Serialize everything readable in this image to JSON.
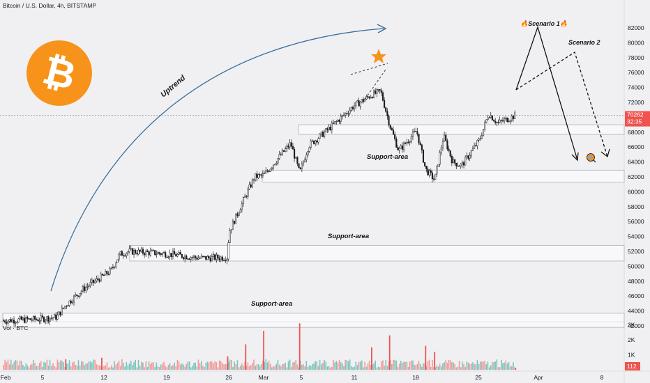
{
  "header": {
    "title": "Bitcoin / U.S. Dollar, 4h, BITSTAMP"
  },
  "volume_label": "Vol · BTC",
  "price_tag": {
    "price": "70262",
    "countdown": "32:35"
  },
  "volume_tag": "112",
  "annotations": {
    "uptrend": "Uptrend",
    "scenario1": "🔥Scenario 1🔥",
    "scenario2": "Scenario 2",
    "support1": "Support-area",
    "support2": "Support-area",
    "support3": "Support-area"
  },
  "colors": {
    "up": "#26a69a",
    "down": "#ef5350",
    "candle": "#1a1a1a",
    "accent": "#f7931a",
    "arrow": "#3b6e99",
    "background": "#f0f0f3"
  },
  "icons": {
    "logo": "bitcoin-logo",
    "star": "star-icon",
    "target": "target-icon"
  },
  "chart_data": {
    "type": "candlestick",
    "title": "Bitcoin / U.S. Dollar, 4h, BITSTAMP",
    "xlabel": "",
    "ylabel": "",
    "x_ticks": [
      "Feb",
      "5",
      "12",
      "19",
      "26",
      "Mar",
      "5",
      "11",
      "18",
      "25",
      "Apr",
      "8"
    ],
    "y_ticks": [
      42000,
      44000,
      46000,
      48000,
      50000,
      52000,
      54000,
      56000,
      58000,
      60000,
      62000,
      64000,
      66000,
      68000,
      70000,
      72000,
      74000,
      76000,
      78000,
      80000,
      82000
    ],
    "ylim": [
      41500,
      82500
    ],
    "volume_ticks": [
      "1K",
      "2K",
      "3K"
    ],
    "last_price": 70262,
    "support_zones": [
      {
        "label": "Support-area",
        "low": 41800,
        "high": 43700
      },
      {
        "label": "Support-area",
        "low": 50700,
        "high": 52800
      },
      {
        "label": "Support-area",
        "low": 61300,
        "high": 62900
      },
      {
        "label": "",
        "low": 67700,
        "high": 69000
      }
    ],
    "price_path": [
      {
        "date": "2024-02-01",
        "price": 42700
      },
      {
        "date": "2024-02-05",
        "price": 42900
      },
      {
        "date": "2024-02-07",
        "price": 43200
      },
      {
        "date": "2024-02-08",
        "price": 44800
      },
      {
        "date": "2024-02-10",
        "price": 47000
      },
      {
        "date": "2024-02-12",
        "price": 48600
      },
      {
        "date": "2024-02-13",
        "price": 49400
      },
      {
        "date": "2024-02-14",
        "price": 51600
      },
      {
        "date": "2024-02-15",
        "price": 52000
      },
      {
        "date": "2024-02-19",
        "price": 51700
      },
      {
        "date": "2024-02-23",
        "price": 51100
      },
      {
        "date": "2024-02-26",
        "price": 51200
      },
      {
        "date": "2024-02-26",
        "price": 54500
      },
      {
        "date": "2024-02-28",
        "price": 59500
      },
      {
        "date": "2024-02-29",
        "price": 62000
      },
      {
        "date": "2024-03-01",
        "price": 62200
      },
      {
        "date": "2024-03-04",
        "price": 66500
      },
      {
        "date": "2024-03-05",
        "price": 62500
      },
      {
        "date": "2024-03-06",
        "price": 66200
      },
      {
        "date": "2024-03-08",
        "price": 68200
      },
      {
        "date": "2024-03-11",
        "price": 71500
      },
      {
        "date": "2024-03-13",
        "price": 73000
      },
      {
        "date": "2024-03-14",
        "price": 73500
      },
      {
        "date": "2024-03-15",
        "price": 69000
      },
      {
        "date": "2024-03-16",
        "price": 65500
      },
      {
        "date": "2024-03-18",
        "price": 68200
      },
      {
        "date": "2024-03-19",
        "price": 63000
      },
      {
        "date": "2024-03-20",
        "price": 61600
      },
      {
        "date": "2024-03-21",
        "price": 67500
      },
      {
        "date": "2024-03-22",
        "price": 64000
      },
      {
        "date": "2024-03-23",
        "price": 63500
      },
      {
        "date": "2024-03-25",
        "price": 67000
      },
      {
        "date": "2024-03-26",
        "price": 70500
      },
      {
        "date": "2024-03-27",
        "price": 69200
      },
      {
        "date": "2024-03-29",
        "price": 70262
      }
    ],
    "volume_bars": [
      {
        "date": "2024-02-08",
        "volume": 700
      },
      {
        "date": "2024-02-12",
        "volume": 800
      },
      {
        "date": "2024-02-26",
        "volume": 900
      },
      {
        "date": "2024-02-28",
        "volume": 1700
      },
      {
        "date": "2024-03-01",
        "volume": 2600
      },
      {
        "date": "2024-03-05",
        "volume": 3100
      },
      {
        "date": "2024-03-13",
        "volume": 1500
      },
      {
        "date": "2024-03-15",
        "volume": 2300
      },
      {
        "date": "2024-03-19",
        "volume": 1600
      },
      {
        "date": "2024-03-20",
        "volume": 1200
      },
      {
        "date": "2024-03-29",
        "volume": 112
      }
    ],
    "projections": [
      {
        "name": "Scenario 1",
        "style": "solid",
        "points": [
          {
            "date": "2024-03-29",
            "price": 70262
          },
          {
            "date": "2024-03-31",
            "price": 79000
          },
          {
            "date": "2024-04-04",
            "price": 61500
          }
        ]
      },
      {
        "name": "Scenario 2",
        "style": "dashed",
        "points": [
          {
            "date": "2024-03-29",
            "price": 70262
          },
          {
            "date": "2024-04-05",
            "price": 76300
          },
          {
            "date": "2024-04-08",
            "price": 62000
          }
        ]
      }
    ]
  }
}
